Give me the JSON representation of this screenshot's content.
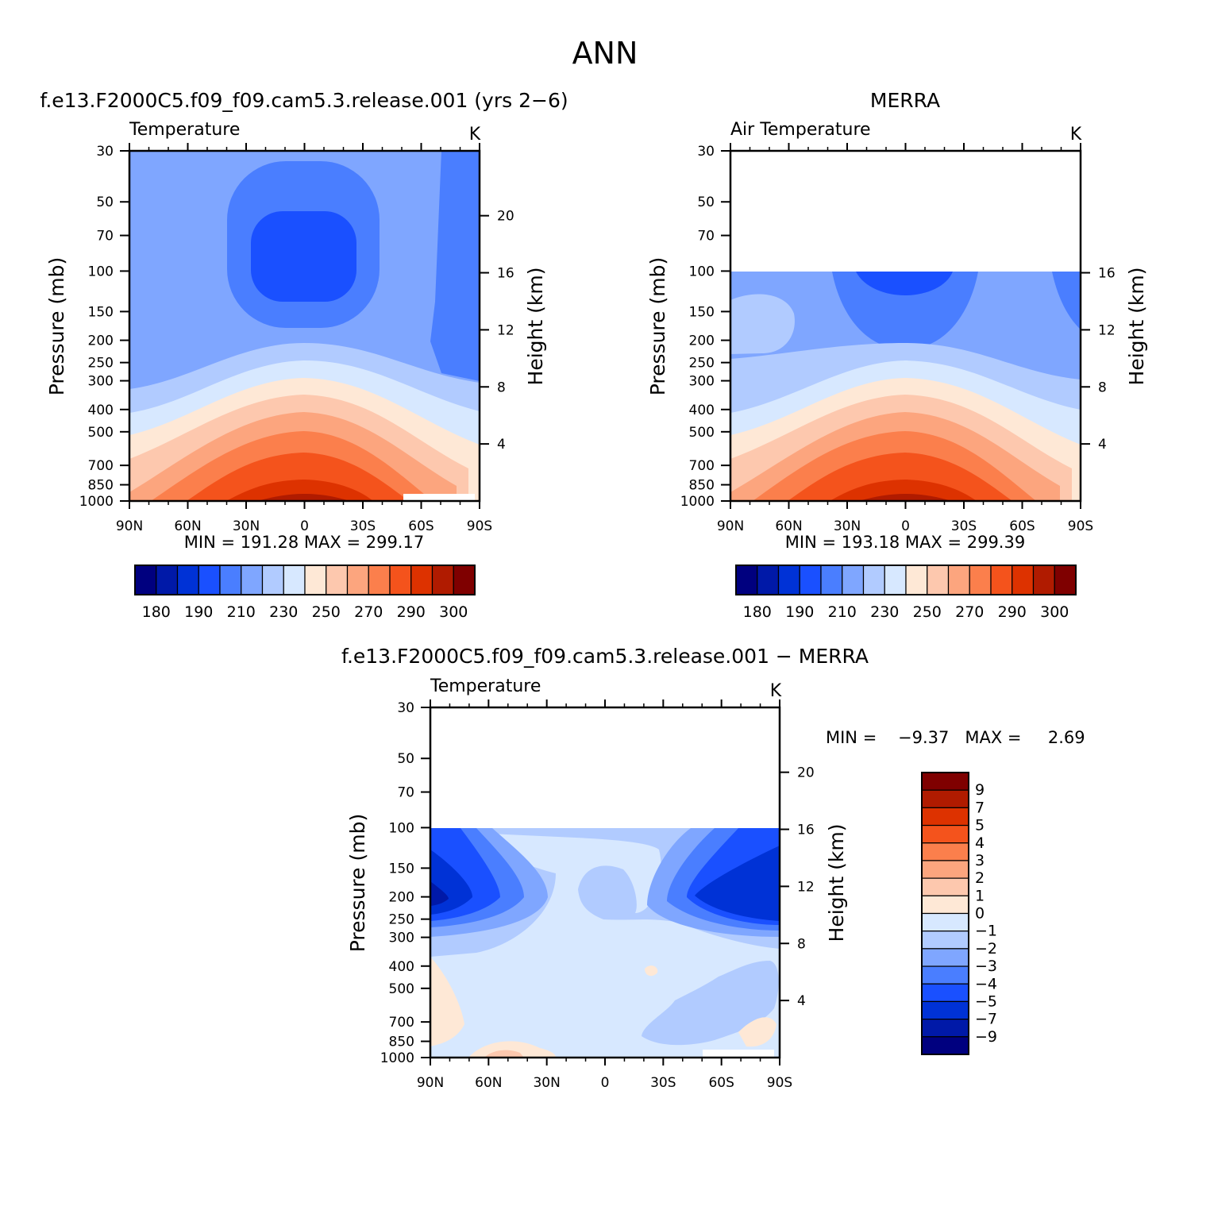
{
  "figure": {
    "title": "ANN"
  },
  "panels": {
    "model": {
      "header": "f.e13.F2000C5.f09_f09.cam5.3.release.001 (yrs 2−6)",
      "var_label": "Temperature",
      "units": "K",
      "ylabel": "Pressure (mb)",
      "y2label": "Height (km)",
      "stats": "MIN = 191.28   MAX = 299.17"
    },
    "obs": {
      "header": "MERRA",
      "var_label": "Air Temperature",
      "units": "K",
      "ylabel": "Pressure (mb)",
      "y2label": "Height (km)",
      "stats": "MIN = 193.18   MAX = 299.39"
    },
    "diff": {
      "header": "f.e13.F2000C5.f09_f09.cam5.3.release.001 − MERRA",
      "var_label": "Temperature",
      "units": "K",
      "ylabel": "Pressure (mb)",
      "y2label": "Height (km)",
      "stats": "MIN =    −9.37   MAX =     2.69"
    }
  },
  "colorbars": {
    "abs_colors": [
      "#00007f",
      "#0019a8",
      "#0032d6",
      "#1a50ff",
      "#4a7eff",
      "#7fa6ff",
      "#b1cbff",
      "#d7e8ff",
      "#fee8d6",
      "#fdc8ae",
      "#fca57e",
      "#fb7f4c",
      "#f4531c",
      "#dd3200",
      "#b01b00",
      "#7f0000"
    ],
    "abs_labels": [
      "180",
      "190",
      "210",
      "230",
      "250",
      "270",
      "290",
      "300"
    ],
    "diff_colors": [
      "#00007f",
      "#0019a8",
      "#0032d6",
      "#1a50ff",
      "#4a7eff",
      "#7fa6ff",
      "#b1cbff",
      "#d7e8ff",
      "#fee8d6",
      "#fdc8ae",
      "#fca57e",
      "#fb7f4c",
      "#f4531c",
      "#dd3200",
      "#b01b00",
      "#7f0000"
    ],
    "diff_labels": [
      "9",
      "7",
      "5",
      "4",
      "3",
      "2",
      "1",
      "0",
      "−1",
      "−2",
      "−3",
      "−4",
      "−5",
      "−7",
      "−9"
    ]
  },
  "chart_data": [
    {
      "type": "heatmap",
      "panel": "model",
      "x_ticks": [
        "90N",
        "60N",
        "30N",
        "0",
        "30S",
        "60S",
        "90S"
      ],
      "x_range": [
        90,
        -90
      ],
      "y_ticks": [
        30,
        50,
        70,
        100,
        150,
        200,
        250,
        300,
        400,
        500,
        700,
        850,
        1000
      ],
      "y_range": [
        1000,
        30
      ],
      "y_scale": "log",
      "y2_ticks": [
        20,
        16,
        12,
        8,
        4
      ],
      "levels": [
        180,
        185,
        190,
        200,
        210,
        220,
        230,
        240,
        250,
        260,
        270,
        280,
        290,
        295,
        300
      ],
      "min": 191.28,
      "max": 299.17
    },
    {
      "type": "heatmap",
      "panel": "obs",
      "x_ticks": [
        "90N",
        "60N",
        "30N",
        "0",
        "30S",
        "60S",
        "90S"
      ],
      "x_range": [
        90,
        -90
      ],
      "y_ticks": [
        30,
        50,
        70,
        100,
        150,
        200,
        250,
        300,
        400,
        500,
        700,
        850,
        1000
      ],
      "y_range": [
        1000,
        30
      ],
      "y_scale": "log",
      "y2_ticks": [
        16,
        12,
        8,
        4
      ],
      "data_top_pressure": 100,
      "levels": [
        180,
        185,
        190,
        200,
        210,
        220,
        230,
        240,
        250,
        260,
        270,
        280,
        290,
        295,
        300
      ],
      "min": 193.18,
      "max": 299.39
    },
    {
      "type": "heatmap",
      "panel": "diff",
      "x_ticks": [
        "90N",
        "60N",
        "30N",
        "0",
        "30S",
        "60S",
        "90S"
      ],
      "x_range": [
        90,
        -90
      ],
      "y_ticks": [
        30,
        50,
        70,
        100,
        150,
        200,
        250,
        300,
        400,
        500,
        700,
        850,
        1000
      ],
      "y_range": [
        1000,
        30
      ],
      "y_scale": "log",
      "y2_ticks": [
        20,
        16,
        12,
        8,
        4
      ],
      "data_top_pressure": 100,
      "levels": [
        -9,
        -7,
        -5,
        -4,
        -3,
        -2,
        -1,
        0,
        1,
        2,
        3,
        4,
        5,
        7,
        9
      ],
      "min": -9.37,
      "max": 2.69
    }
  ]
}
